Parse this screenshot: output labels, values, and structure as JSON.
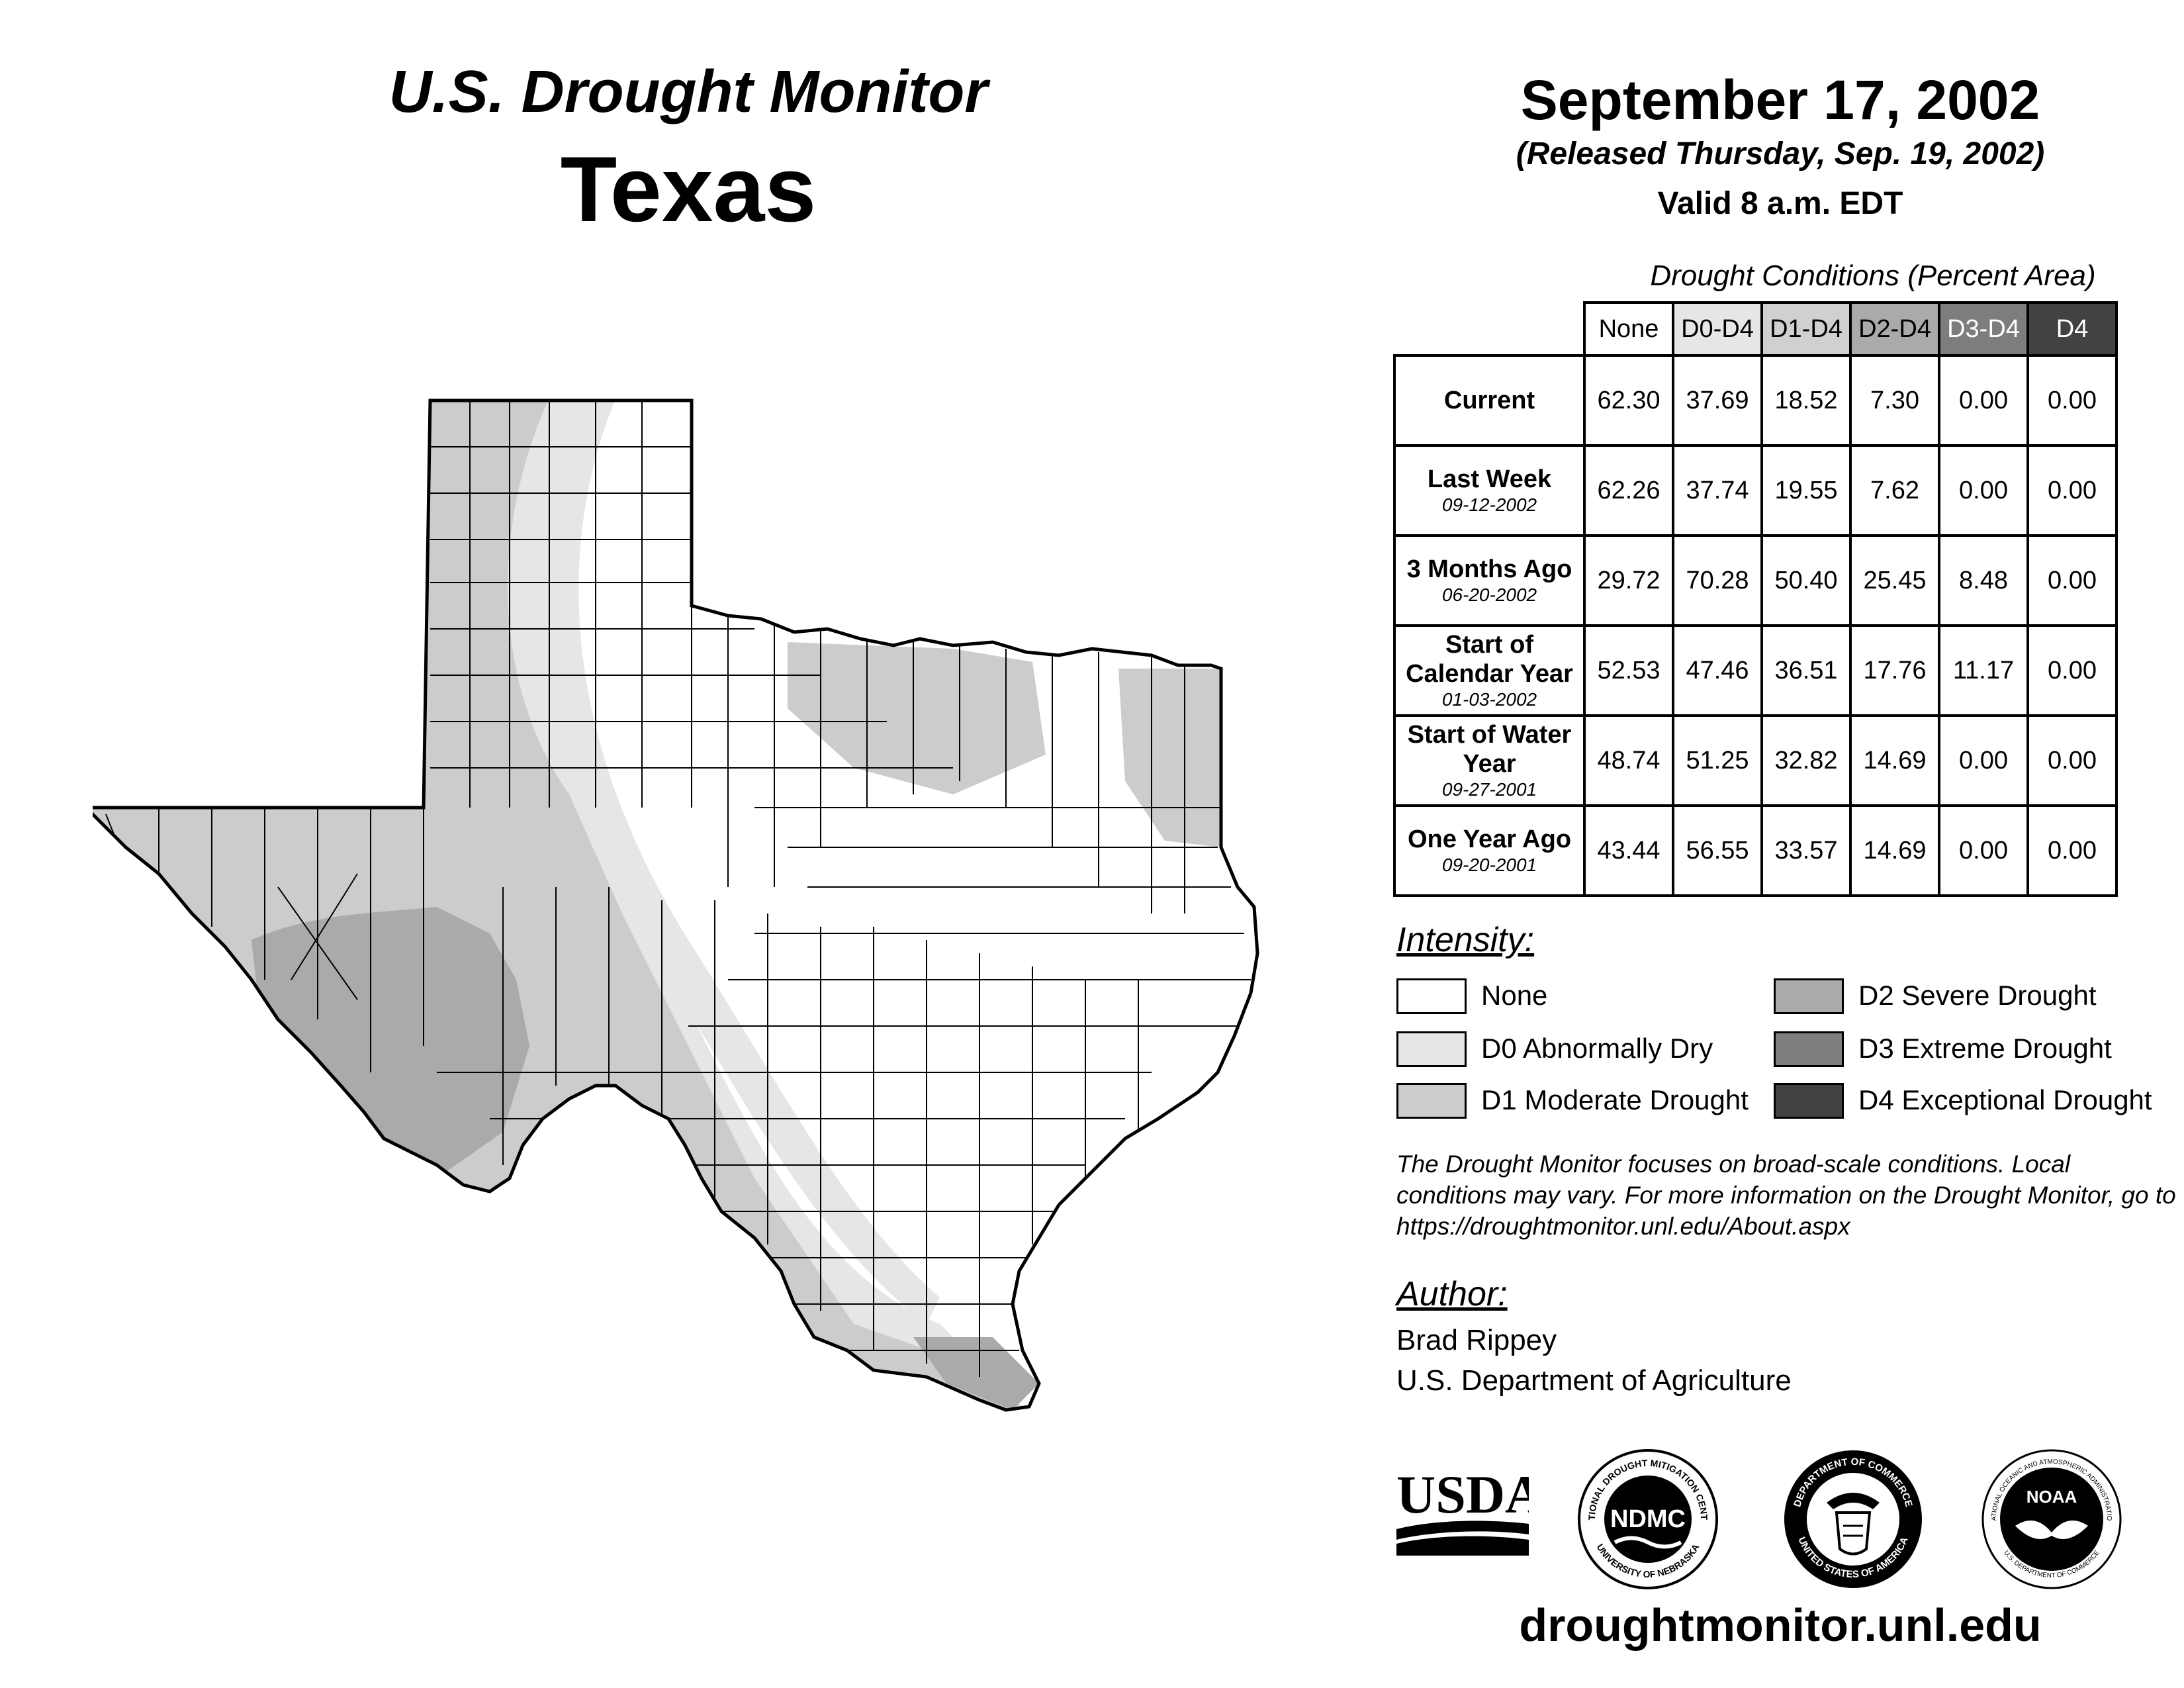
{
  "header": {
    "product": "U.S. Drought Monitor",
    "region": "Texas",
    "date": "September 17, 2002",
    "released": "(Released Thursday, Sep. 19, 2002)",
    "valid": "Valid 8 a.m. EDT"
  },
  "conditions_table": {
    "caption": "Drought Conditions (Percent Area)",
    "columns": [
      "None",
      "D0-D4",
      "D1-D4",
      "D2-D4",
      "D3-D4",
      "D4"
    ],
    "column_colors": [
      "#ffffff",
      "#e6e6e6",
      "#d0d0d0",
      "#aaaaaa",
      "#7d7d7d",
      "#424242"
    ],
    "rows": [
      {
        "label": "Current",
        "date": "",
        "values": [
          "62.30",
          "37.69",
          "18.52",
          "7.30",
          "0.00",
          "0.00"
        ]
      },
      {
        "label": "Last Week",
        "date": "09-12-2002",
        "values": [
          "62.26",
          "37.74",
          "19.55",
          "7.62",
          "0.00",
          "0.00"
        ]
      },
      {
        "label": "3 Months Ago",
        "date": "06-20-2002",
        "values": [
          "29.72",
          "70.28",
          "50.40",
          "25.45",
          "8.48",
          "0.00"
        ]
      },
      {
        "label": "Start of Calendar Year",
        "date": "01-03-2002",
        "values": [
          "52.53",
          "47.46",
          "36.51",
          "17.76",
          "11.17",
          "0.00"
        ]
      },
      {
        "label": "Start of Water Year",
        "date": "09-27-2001",
        "values": [
          "48.74",
          "51.25",
          "32.82",
          "14.69",
          "0.00",
          "0.00"
        ]
      },
      {
        "label": "One Year Ago",
        "date": "09-20-2001",
        "values": [
          "43.44",
          "56.55",
          "33.57",
          "14.69",
          "0.00",
          "0.00"
        ]
      }
    ]
  },
  "legend": {
    "title": "Intensity:",
    "items": [
      {
        "label": "None",
        "color": "#ffffff"
      },
      {
        "label": "D0 Abnormally Dry",
        "color": "#e6e6e6"
      },
      {
        "label": "D1 Moderate Drought",
        "color": "#cccccc"
      },
      {
        "label": "D2 Severe Drought",
        "color": "#aaaaaa"
      },
      {
        "label": "D3 Extreme Drought",
        "color": "#7d7d7d"
      },
      {
        "label": "D4 Exceptional Drought",
        "color": "#424242"
      }
    ]
  },
  "note": "The Drought Monitor focuses on broad-scale conditions. Local conditions may vary. For more information on the Drought Monitor, go to https://droughtmonitor.unl.edu/About.aspx",
  "author": {
    "title": "Author:",
    "name": "Brad Rippey",
    "org": "U.S. Department of Agriculture"
  },
  "logos": {
    "usda": "USDA",
    "ndmc": "NDMC",
    "ndmc_ring_top": "NATIONAL DROUGHT MITIGATION CENTER",
    "ndmc_ring_bottom": "UNIVERSITY OF NEBRASKA",
    "commerce_ring_top": "DEPARTMENT OF COMMERCE",
    "commerce_ring_bottom": "UNITED STATES OF AMERICA",
    "noaa": "NOAA",
    "noaa_ring_top": "NATIONAL OCEANIC AND ATMOSPHERIC ADMINISTRATION",
    "noaa_ring_bottom": "U.S. DEPARTMENT OF COMMERCE"
  },
  "website": "droughtmonitor.unl.edu",
  "map": {
    "state": "Texas",
    "drought_areas": [
      "D0 Abnormally Dry",
      "D1 Moderate Drought",
      "D2 Severe Drought"
    ]
  }
}
